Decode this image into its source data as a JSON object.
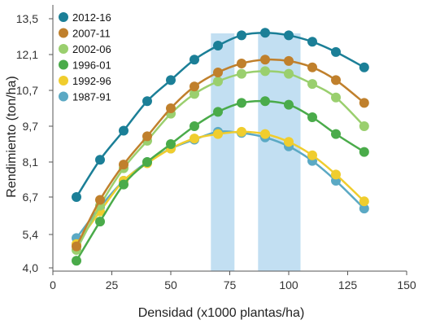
{
  "chart_data": {
    "type": "line",
    "title": "",
    "xlabel": "Densidad (x1000 plantas/ha)",
    "ylabel": "Rendimiento (ton/ha)",
    "xlim": [
      0,
      150
    ],
    "ylim": [
      4.0,
      13.5
    ],
    "xticks": [
      0,
      25,
      50,
      75,
      100,
      125,
      150
    ],
    "yticks": [
      4.0,
      5.4,
      6.7,
      8.1,
      9.7,
      10.7,
      12.1,
      13.5
    ],
    "ytick_labels": [
      "4,0",
      "5,4",
      "6,7",
      "8,1",
      "9,7",
      "10,7",
      "12,1",
      "13,5"
    ],
    "grid": false,
    "legend_position": "top-left",
    "highlight_bands": [
      [
        67,
        77
      ],
      [
        87,
        105
      ]
    ],
    "highlight_color": "#c2dff2",
    "x": [
      10,
      20,
      30,
      40,
      50,
      60,
      70,
      80,
      90,
      100,
      110,
      120,
      132
    ],
    "series": [
      {
        "name": "2012-16",
        "color": "#1b7f97",
        "values": [
          6.7,
          8.2,
          9.5,
          10.4,
          11.1,
          11.9,
          12.45,
          12.85,
          12.95,
          12.85,
          12.6,
          12.2,
          11.6
        ]
      },
      {
        "name": "2007-11",
        "color": "#c0802c",
        "values": [
          4.9,
          6.6,
          8.0,
          9.25,
          10.2,
          10.85,
          11.4,
          11.75,
          11.9,
          11.85,
          11.6,
          11.1,
          10.35
        ]
      },
      {
        "name": "2002-06",
        "color": "#9acf6e",
        "values": [
          4.75,
          6.4,
          7.85,
          9.05,
          10.05,
          10.6,
          11.05,
          11.35,
          11.45,
          11.35,
          10.95,
          10.5,
          9.7
        ]
      },
      {
        "name": "1996-01",
        "color": "#4aab4a",
        "values": [
          4.3,
          5.85,
          7.2,
          8.1,
          8.9,
          9.7,
          10.1,
          10.35,
          10.4,
          10.3,
          9.95,
          9.35,
          8.55
        ]
      },
      {
        "name": "1992-96",
        "color": "#f0cd2e",
        "values": [
          5.0,
          6.2,
          7.35,
          8.05,
          8.7,
          9.15,
          9.35,
          9.45,
          9.35,
          9.0,
          8.4,
          7.6,
          6.55
        ]
      },
      {
        "name": "1987-91",
        "color": "#5ba9c4",
        "values": [
          5.25,
          6.35,
          7.35,
          8.1,
          8.7,
          9.1,
          9.45,
          9.4,
          9.2,
          8.8,
          8.15,
          7.35,
          6.3
        ]
      }
    ]
  }
}
